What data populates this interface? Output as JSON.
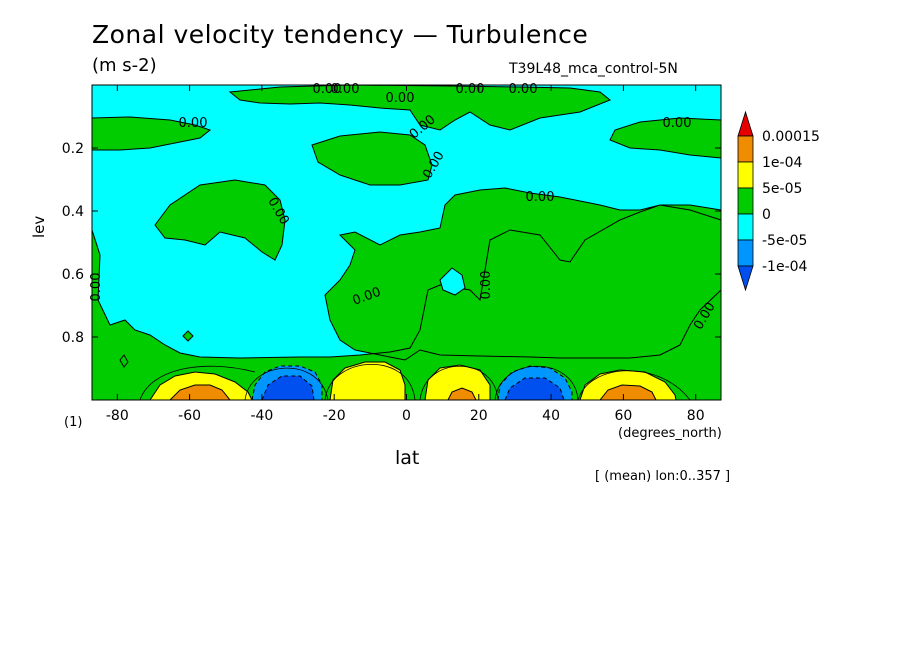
{
  "chart_data": {
    "type": "heatmap",
    "title": "Zonal velocity tendency — Turbulence",
    "units": "(m s-2)",
    "run_label": "T39L48_mca_control-5N",
    "xlabel": "lat",
    "xunits": "(degrees_north)",
    "ylabel": "lev",
    "panel_id": "(1)",
    "averaging_note": "[ (mean) lon:0..357 ]",
    "x_ticks": [
      "-80",
      "-60",
      "-40",
      "-20",
      "0",
      "20",
      "40",
      "60",
      "80"
    ],
    "y_ticks": [
      "0.2",
      "0.4",
      "0.6",
      "0.8"
    ],
    "xlim": [
      -87,
      87
    ],
    "ylim": [
      1.0,
      0.0
    ],
    "y_inverted": true,
    "legend": {
      "placement": "right",
      "labels": [
        "0.00015",
        "1e-04",
        "5e-05",
        "0",
        "-5e-05",
        "-1e-04"
      ],
      "colors": [
        "#e60000",
        "#f08c00",
        "#ffff00",
        "#00cc00",
        "#00ffff",
        "#0096ff",
        "#0050f0"
      ]
    },
    "colors": {
      "background_fill": "#00ffff",
      "weak_positive": "#00cc00",
      "moderate_positive": "#ffff00",
      "strong_positive": "#f08c00",
      "weak_negative": "#0096ff",
      "strong_negative": "#0050f0"
    },
    "contour_labels": [
      "0.00",
      "0.00",
      "0.00",
      "0.00",
      "0.00",
      "0.00",
      "0.00",
      "0.00",
      "0.00",
      "0.00",
      "0.00",
      "0.00",
      "0.00",
      "0.00",
      "0.00"
    ]
  }
}
